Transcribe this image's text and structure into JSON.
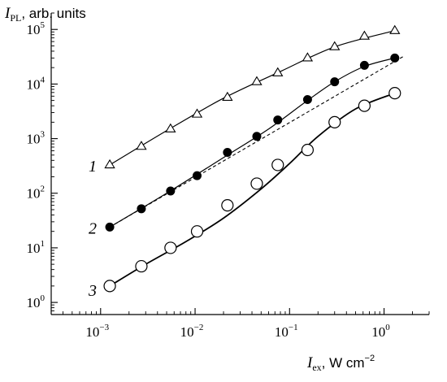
{
  "chart_data": {
    "type": "scatter",
    "x_scale": "log",
    "y_scale": "log",
    "xlim": [
      0.0003,
      3
    ],
    "ylim": [
      0.6,
      200000
    ],
    "grid": false,
    "ylabel": {
      "symbol": "I",
      "subscript": "PL",
      "rest": ", arb. units"
    },
    "xlabel": {
      "symbol": "I",
      "subscript": "ex",
      "rest": ", W cm",
      "superscript": "−2"
    },
    "x_ticks": [
      {
        "value": 0.001,
        "base": "10",
        "exp": "−3"
      },
      {
        "value": 0.01,
        "base": "10",
        "exp": "−2"
      },
      {
        "value": 0.1,
        "base": "10",
        "exp": "−1"
      },
      {
        "value": 1,
        "base": "10",
        "exp": "0"
      }
    ],
    "y_ticks": [
      {
        "value": 1,
        "base": "10",
        "exp": "0"
      },
      {
        "value": 10,
        "base": "10",
        "exp": "1"
      },
      {
        "value": 100,
        "base": "10",
        "exp": "2"
      },
      {
        "value": 1000,
        "base": "10",
        "exp": "3"
      },
      {
        "value": 10000,
        "base": "10",
        "exp": "4"
      },
      {
        "value": 100000,
        "base": "10",
        "exp": "5"
      }
    ],
    "series": [
      {
        "name": "1",
        "marker": "open-triangle",
        "x": [
          0.00125,
          0.0027,
          0.0055,
          0.0105,
          0.022,
          0.045,
          0.075,
          0.155,
          0.3,
          0.62,
          1.3
        ],
        "y": [
          330,
          720,
          1500,
          2800,
          5700,
          11000,
          16000,
          30000,
          48000,
          75000,
          95000
        ],
        "fit": {
          "x": [
            0.00125,
            0.005,
            0.02,
            0.08,
            0.3,
            1.3
          ],
          "y": [
            330,
            1400,
            5500,
            17000,
            48000,
            95000
          ]
        }
      },
      {
        "name": "2",
        "marker": "filled-circle",
        "x": [
          0.00125,
          0.0027,
          0.0055,
          0.0105,
          0.022,
          0.045,
          0.075,
          0.155,
          0.3,
          0.62,
          1.3
        ],
        "y": [
          24,
          52,
          110,
          210,
          560,
          1100,
          2200,
          5200,
          11000,
          22000,
          30000
        ],
        "fit": {
          "x": [
            0.00125,
            0.005,
            0.02,
            0.06,
            0.15,
            0.3,
            0.62,
            1.3
          ],
          "y": [
            24,
            100,
            450,
            1500,
            4800,
            11000,
            21000,
            30000
          ]
        }
      },
      {
        "name": "3",
        "marker": "open-circle",
        "x": [
          0.00125,
          0.0027,
          0.0055,
          0.0105,
          0.022,
          0.045,
          0.075,
          0.155,
          0.3,
          0.62,
          1.3
        ],
        "y": [
          2,
          4.6,
          10,
          20,
          60,
          150,
          330,
          620,
          2000,
          4000,
          6800
        ],
        "fit": {
          "x": [
            0.00125,
            0.003,
            0.008,
            0.02,
            0.05,
            0.1,
            0.2,
            0.5,
            1.3
          ],
          "y": [
            2,
            5,
            13,
            35,
            120,
            350,
            1100,
            3500,
            6800
          ]
        }
      }
    ],
    "reference_line": {
      "style": "dashed",
      "x": [
        0.00125,
        1.6
      ],
      "y": [
        24,
        32000
      ]
    }
  }
}
